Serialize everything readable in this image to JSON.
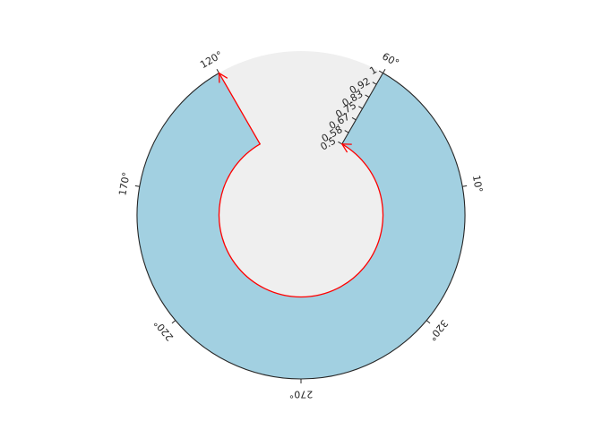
{
  "chart_data": {
    "type": "polar",
    "title": "",
    "colors": {
      "background": "#efefef",
      "fill": "#a2d0e1",
      "arrow": "#ff0000",
      "axis": "#262626"
    },
    "theta": {
      "start_deg": 60,
      "end_deg": 120,
      "direction": "clockwise",
      "ticks": [
        {
          "value": 10,
          "label": "10°"
        },
        {
          "value": 60,
          "label": "60°"
        },
        {
          "value": 120,
          "label": "120°"
        },
        {
          "value": 170,
          "label": "170°"
        },
        {
          "value": 220,
          "label": "220°"
        },
        {
          "value": 270,
          "label": "270°"
        },
        {
          "value": 320,
          "label": "320°"
        }
      ]
    },
    "radius": {
      "min": 0.5,
      "max": 1,
      "ticks": [
        {
          "value": 0.5,
          "label": "0.5"
        },
        {
          "value": 0.58,
          "label": "0.58"
        },
        {
          "value": 0.67,
          "label": "0.67"
        },
        {
          "value": 0.75,
          "label": "0.75"
        },
        {
          "value": 0.83,
          "label": "0.83"
        },
        {
          "value": 0.92,
          "label": "0.92"
        },
        {
          "value": 1,
          "label": "1"
        }
      ]
    },
    "annotation": {
      "type": "arrow",
      "from": {
        "theta": 60,
        "r": 0.5
      },
      "path": "inner arc clockwise from 60° to 120°",
      "to": {
        "theta": 120,
        "r": 1
      }
    }
  }
}
